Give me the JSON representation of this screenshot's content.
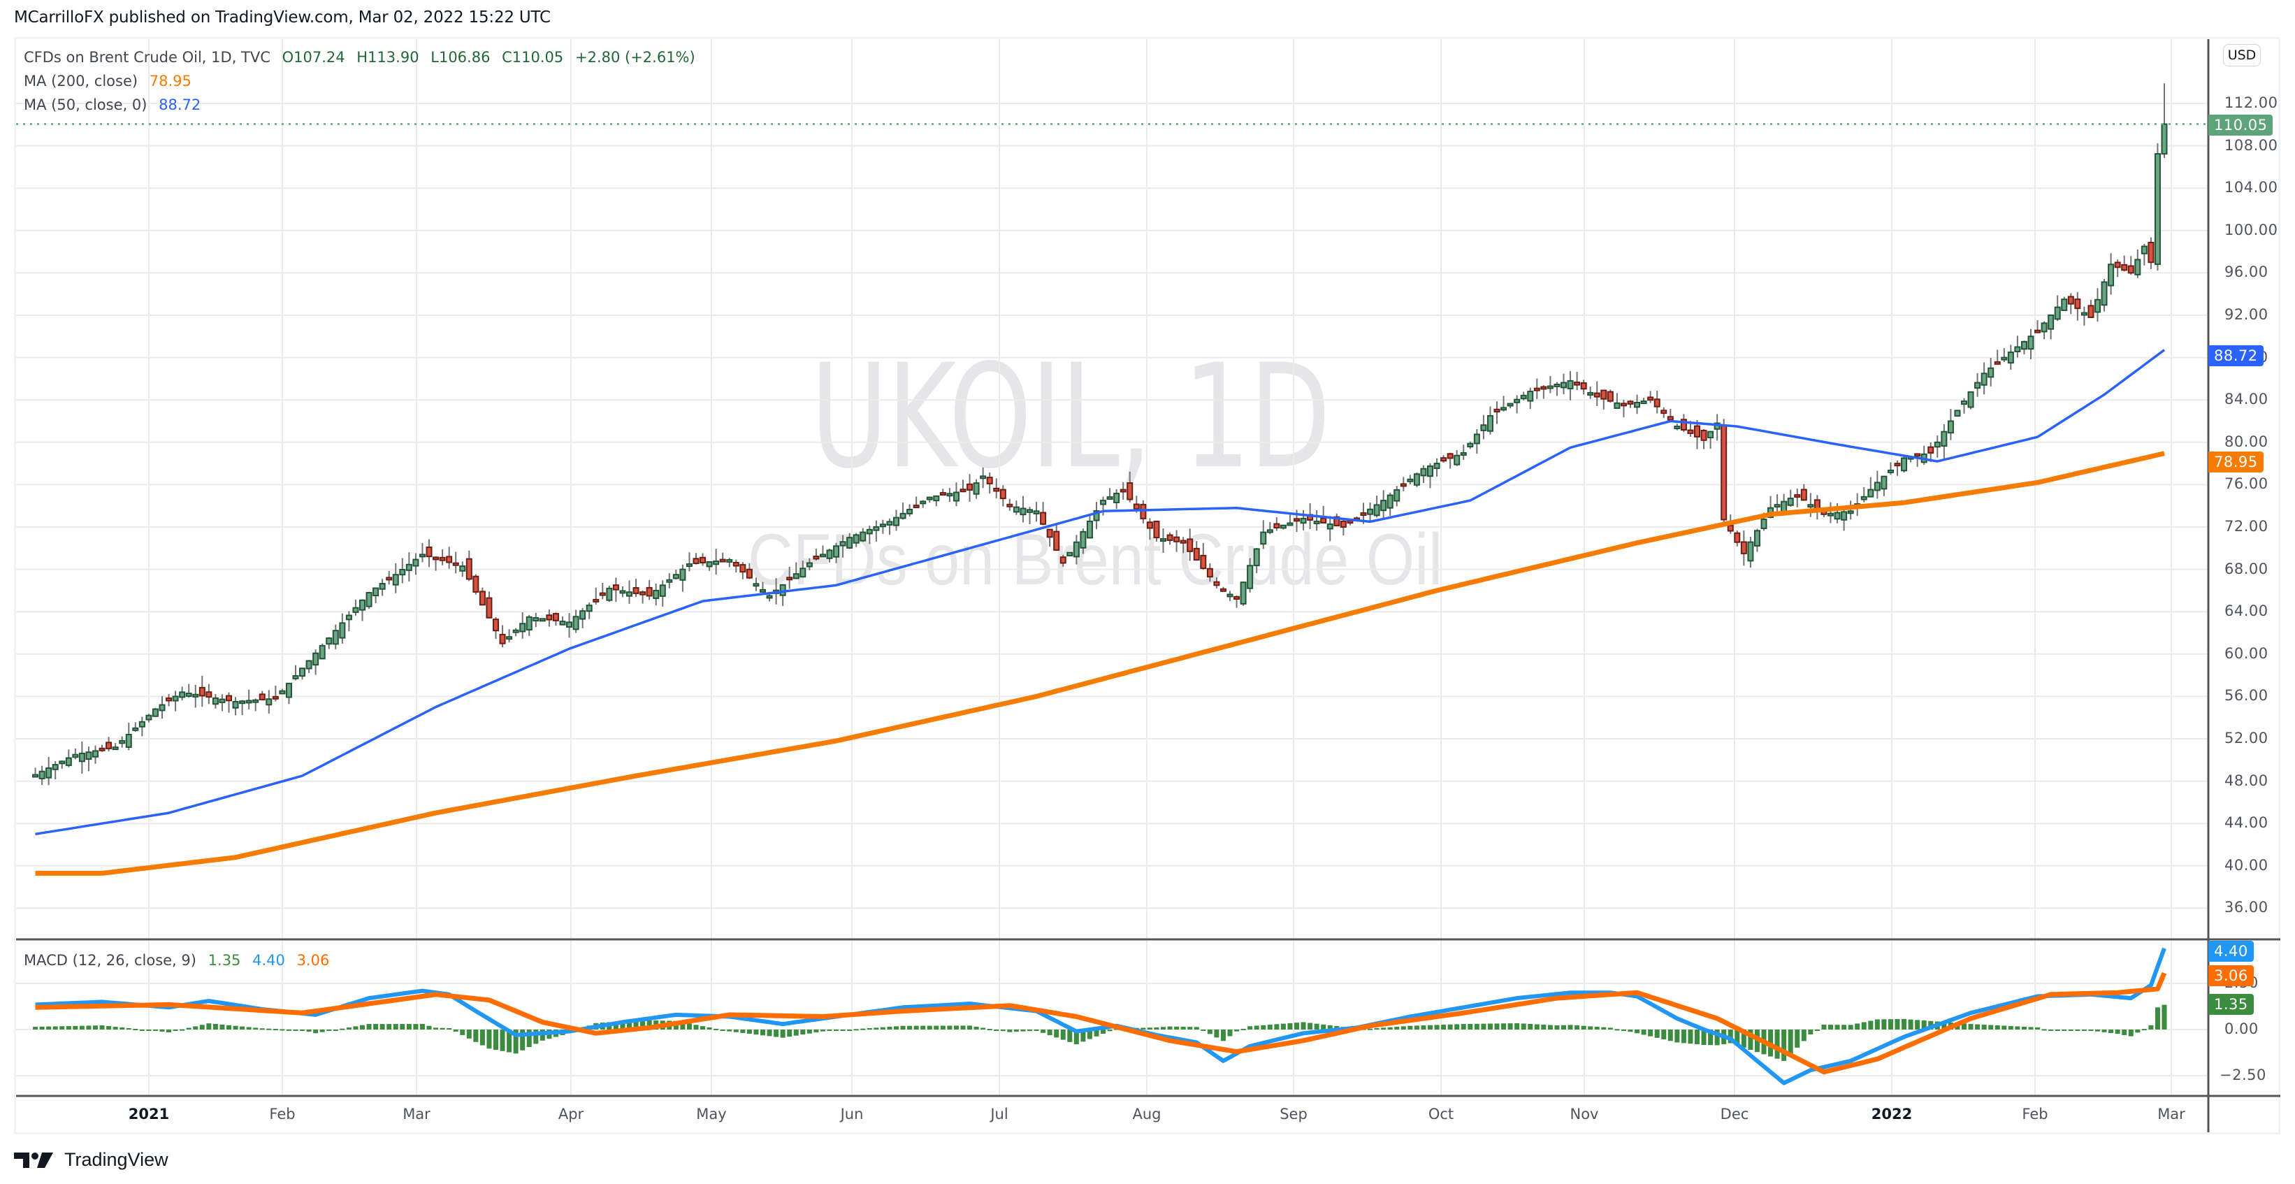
{
  "header": {
    "published": "MCarrilloFX published on TradingView.com, Mar 02, 2022 15:22 UTC"
  },
  "legend": {
    "symbol": "CFDs on Brent Crude Oil, 1D, TVC",
    "open": "O107.24",
    "high": "H113.90",
    "low": "L106.86",
    "close": "C110.05",
    "change": "+2.80 (+2.61%)",
    "ma200_label": "MA (200, close)",
    "ma200_value": "78.95",
    "ma50_label": "MA (50, close, 0)",
    "ma50_value": "88.72"
  },
  "macd_legend": {
    "label": "MACD (12, 26, close, 9)",
    "hist": "1.35",
    "macd": "4.40",
    "signal": "3.06"
  },
  "watermark": {
    "symbol": "UKOIL, 1D",
    "description": "CFDs on Brent Crude Oil"
  },
  "price_axis": {
    "currency": "USD",
    "ticks": [
      "112.00",
      "108.00",
      "104.00",
      "100.00",
      "96.00",
      "92.00",
      "88.00",
      "84.00",
      "80.00",
      "76.00",
      "72.00",
      "68.00",
      "64.00",
      "60.00",
      "56.00",
      "52.00",
      "48.00",
      "44.00",
      "40.00",
      "36.00"
    ],
    "tags": {
      "last": "110.05",
      "ma50": "88.72",
      "ma200": "78.95"
    }
  },
  "macd_axis": {
    "ticks": [
      "2.50",
      "0.00",
      "-2.50"
    ],
    "tags": {
      "macd": "4.40",
      "signal": "3.06",
      "hist": "1.35"
    }
  },
  "time_axis": {
    "labels": [
      {
        "text": "2021",
        "bold": true
      },
      {
        "text": "Feb"
      },
      {
        "text": "Mar"
      },
      {
        "text": "Apr"
      },
      {
        "text": "May"
      },
      {
        "text": "Jun"
      },
      {
        "text": "Jul"
      },
      {
        "text": "Aug"
      },
      {
        "text": "Sep"
      },
      {
        "text": "Oct"
      },
      {
        "text": "Nov"
      },
      {
        "text": "Dec"
      },
      {
        "text": "2022",
        "bold": true
      },
      {
        "text": "Feb"
      },
      {
        "text": "Mar"
      }
    ]
  },
  "footer": {
    "brand": "TradingView"
  },
  "colors": {
    "up_body": "#6ba583",
    "up_border": "#225437",
    "down_body": "#d75442",
    "down_border": "#6d1e14",
    "wick": "#737375",
    "ma50": "#2962ff",
    "ma200": "#f57c00",
    "macd": "#2196f3",
    "signal": "#ff6d00",
    "hist": "#3b8c3e",
    "last_price": "#5ea47a"
  },
  "chart_data": {
    "type": "candlestick",
    "title": "UKOIL, 1D — CFDs on Brent Crude Oil",
    "xlabel": "",
    "ylabel": "USD",
    "ylim": [
      36,
      114
    ],
    "grid": true,
    "legend_position": "top-left",
    "x": [
      "2020-12-14",
      "2021-01",
      "2021-02",
      "2021-03",
      "2021-04",
      "2021-05",
      "2021-06",
      "2021-07",
      "2021-08",
      "2021-09",
      "2021-10",
      "2021-11",
      "2021-12",
      "2022-01",
      "2022-02",
      "2022-03-02"
    ],
    "anchors": [
      {
        "i": 0,
        "c": 48.6
      },
      {
        "i": 6,
        "c": 50.5
      },
      {
        "i": 12,
        "c": 51.2
      },
      {
        "i": 18,
        "c": 54.8
      },
      {
        "i": 22,
        "c": 56.4
      },
      {
        "i": 30,
        "c": 55.5
      },
      {
        "i": 36,
        "c": 55.8
      },
      {
        "i": 44,
        "c": 61.5
      },
      {
        "i": 50,
        "c": 65.8
      },
      {
        "i": 54,
        "c": 67.5
      },
      {
        "i": 58,
        "c": 69.4
      },
      {
        "i": 64,
        "c": 68.3
      },
      {
        "i": 70,
        "c": 61.0
      },
      {
        "i": 74,
        "c": 63.5
      },
      {
        "i": 80,
        "c": 63.0
      },
      {
        "i": 86,
        "c": 66.2
      },
      {
        "i": 92,
        "c": 65.5
      },
      {
        "i": 98,
        "c": 68.5
      },
      {
        "i": 104,
        "c": 68.9
      },
      {
        "i": 110,
        "c": 65.5
      },
      {
        "i": 116,
        "c": 68.6
      },
      {
        "i": 122,
        "c": 71.0
      },
      {
        "i": 128,
        "c": 72.5
      },
      {
        "i": 134,
        "c": 74.8
      },
      {
        "i": 140,
        "c": 75.5
      },
      {
        "i": 142,
        "c": 76.8
      },
      {
        "i": 146,
        "c": 74.0
      },
      {
        "i": 150,
        "c": 73.5
      },
      {
        "i": 154,
        "c": 68.6
      },
      {
        "i": 160,
        "c": 74.5
      },
      {
        "i": 163,
        "c": 75.5
      },
      {
        "i": 168,
        "c": 71.0
      },
      {
        "i": 172,
        "c": 70.5
      },
      {
        "i": 177,
        "c": 66.5
      },
      {
        "i": 180,
        "c": 65.2
      },
      {
        "i": 184,
        "c": 71.5
      },
      {
        "i": 190,
        "c": 72.8
      },
      {
        "i": 196,
        "c": 72.0
      },
      {
        "i": 202,
        "c": 74.5
      },
      {
        "i": 208,
        "c": 77.5
      },
      {
        "i": 214,
        "c": 79.0
      },
      {
        "i": 218,
        "c": 82.5
      },
      {
        "i": 224,
        "c": 84.8
      },
      {
        "i": 230,
        "c": 85.8
      },
      {
        "i": 234,
        "c": 84.3
      },
      {
        "i": 238,
        "c": 83.5
      },
      {
        "i": 242,
        "c": 84.0
      },
      {
        "i": 246,
        "c": 81.5
      },
      {
        "i": 250,
        "c": 80.2
      },
      {
        "i": 252,
        "c": 81.8
      },
      {
        "i": 253,
        "c": 72.7
      },
      {
        "i": 256,
        "c": 69.5
      },
      {
        "i": 260,
        "c": 73.8
      },
      {
        "i": 264,
        "c": 75.0
      },
      {
        "i": 268,
        "c": 73.2
      },
      {
        "i": 272,
        "c": 73.5
      },
      {
        "i": 276,
        "c": 76.2
      },
      {
        "i": 280,
        "c": 78.5
      },
      {
        "i": 284,
        "c": 79.0
      },
      {
        "i": 288,
        "c": 83.0
      },
      {
        "i": 292,
        "c": 86.5
      },
      {
        "i": 296,
        "c": 88.5
      },
      {
        "i": 300,
        "c": 90.5
      },
      {
        "i": 304,
        "c": 93.5
      },
      {
        "i": 308,
        "c": 91.8
      },
      {
        "i": 311,
        "c": 96.8
      },
      {
        "i": 314,
        "c": 96.0
      },
      {
        "i": 316,
        "c": 98.5
      },
      {
        "i": 317,
        "c": 97.0
      },
      {
        "i": 318,
        "c": 107.24
      },
      {
        "i": 319,
        "c": 110.05
      }
    ],
    "last_candle": {
      "open": 107.24,
      "high": 113.9,
      "low": 106.86,
      "close": 110.05,
      "change": 2.8,
      "change_pct": 2.61
    },
    "ma50_path": [
      [
        0,
        43.0
      ],
      [
        20,
        45.0
      ],
      [
        40,
        48.5
      ],
      [
        60,
        55.0
      ],
      [
        80,
        60.5
      ],
      [
        100,
        65.0
      ],
      [
        120,
        66.5
      ],
      [
        140,
        70.0
      ],
      [
        160,
        73.5
      ],
      [
        180,
        73.8
      ],
      [
        200,
        72.5
      ],
      [
        215,
        74.5
      ],
      [
        230,
        79.5
      ],
      [
        245,
        82.0
      ],
      [
        255,
        81.5
      ],
      [
        270,
        79.8
      ],
      [
        285,
        78.2
      ],
      [
        300,
        80.5
      ],
      [
        310,
        84.5
      ],
      [
        319,
        88.72
      ]
    ],
    "ma200_path": [
      [
        0,
        39.3
      ],
      [
        10,
        39.3
      ],
      [
        30,
        40.8
      ],
      [
        60,
        45.0
      ],
      [
        90,
        48.5
      ],
      [
        120,
        51.8
      ],
      [
        150,
        56.0
      ],
      [
        180,
        61.0
      ],
      [
        210,
        66.0
      ],
      [
        240,
        70.5
      ],
      [
        260,
        73.2
      ],
      [
        280,
        74.3
      ],
      [
        300,
        76.2
      ],
      [
        319,
        78.95
      ]
    ],
    "macd_series": {
      "macd": [
        [
          0,
          1.35
        ],
        [
          10,
          1.5
        ],
        [
          20,
          1.2
        ],
        [
          26,
          1.55
        ],
        [
          34,
          1.1
        ],
        [
          42,
          0.8
        ],
        [
          50,
          1.7
        ],
        [
          58,
          2.1
        ],
        [
          62,
          1.9
        ],
        [
          66,
          1.0
        ],
        [
          72,
          -0.3
        ],
        [
          80,
          -0.1
        ],
        [
          88,
          0.4
        ],
        [
          96,
          0.8
        ],
        [
          104,
          0.7
        ],
        [
          112,
          0.3
        ],
        [
          120,
          0.7
        ],
        [
          130,
          1.2
        ],
        [
          140,
          1.4
        ],
        [
          150,
          1.0
        ],
        [
          156,
          -0.1
        ],
        [
          162,
          0.2
        ],
        [
          168,
          -0.3
        ],
        [
          174,
          -0.7
        ],
        [
          178,
          -1.7
        ],
        [
          182,
          -0.9
        ],
        [
          190,
          -0.2
        ],
        [
          198,
          0.1
        ],
        [
          206,
          0.7
        ],
        [
          214,
          1.2
        ],
        [
          222,
          1.7
        ],
        [
          230,
          2.0
        ],
        [
          236,
          2.0
        ],
        [
          240,
          1.8
        ],
        [
          246,
          0.6
        ],
        [
          250,
          0.0
        ],
        [
          254,
          -0.5
        ],
        [
          258,
          -1.7
        ],
        [
          262,
          -2.9
        ],
        [
          266,
          -2.2
        ],
        [
          272,
          -1.7
        ],
        [
          280,
          -0.4
        ],
        [
          290,
          0.9
        ],
        [
          300,
          1.8
        ],
        [
          308,
          1.9
        ],
        [
          314,
          1.7
        ],
        [
          317,
          2.4
        ],
        [
          319,
          4.4
        ]
      ],
      "signal": [
        [
          0,
          1.2
        ],
        [
          20,
          1.35
        ],
        [
          40,
          0.9
        ],
        [
          60,
          1.9
        ],
        [
          68,
          1.6
        ],
        [
          76,
          0.4
        ],
        [
          84,
          -0.2
        ],
        [
          92,
          0.1
        ],
        [
          104,
          0.8
        ],
        [
          118,
          0.7
        ],
        [
          130,
          1.0
        ],
        [
          146,
          1.3
        ],
        [
          156,
          0.7
        ],
        [
          170,
          -0.6
        ],
        [
          180,
          -1.2
        ],
        [
          190,
          -0.6
        ],
        [
          200,
          0.2
        ],
        [
          214,
          0.9
        ],
        [
          228,
          1.7
        ],
        [
          240,
          2.0
        ],
        [
          252,
          0.6
        ],
        [
          262,
          -1.2
        ],
        [
          268,
          -2.3
        ],
        [
          276,
          -1.6
        ],
        [
          290,
          0.6
        ],
        [
          302,
          1.9
        ],
        [
          312,
          2.0
        ],
        [
          318,
          2.2
        ],
        [
          319,
          3.06
        ]
      ],
      "ylim": [
        -3.4,
        5.0
      ]
    }
  }
}
